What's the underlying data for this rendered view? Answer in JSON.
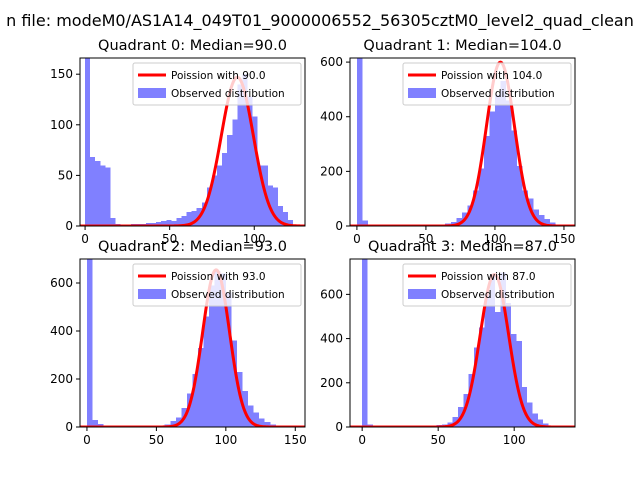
{
  "suptitle": "n file: modeM0/AS1A14_049T01_9000006552_56305cztM0_level2_quad_clean",
  "colors": {
    "hist": "#8080ff",
    "curve": "#ff0000"
  },
  "chart_data": [
    {
      "type": "bar+line",
      "title": "Quadrant 0: Median=90.0",
      "median": 90,
      "xlim": [
        -3,
        130
      ],
      "ylim": [
        0,
        166
      ],
      "xticks": [
        0,
        50,
        100
      ],
      "yticks": [
        0,
        50,
        100,
        150
      ],
      "legend": [
        "Poission with 90.0",
        "Observed distribution"
      ],
      "curve_peak": 147,
      "bin_width": 3,
      "hist": [
        {
          "x": 0,
          "v": 166
        },
        {
          "x": 3,
          "v": 68
        },
        {
          "x": 6,
          "v": 64
        },
        {
          "x": 9,
          "v": 60
        },
        {
          "x": 12,
          "v": 58
        },
        {
          "x": 15,
          "v": 8
        },
        {
          "x": 18,
          "v": 2
        },
        {
          "x": 21,
          "v": 1
        },
        {
          "x": 24,
          "v": 1
        },
        {
          "x": 27,
          "v": 2
        },
        {
          "x": 30,
          "v": 2
        },
        {
          "x": 33,
          "v": 2
        },
        {
          "x": 36,
          "v": 3
        },
        {
          "x": 39,
          "v": 3
        },
        {
          "x": 42,
          "v": 4
        },
        {
          "x": 45,
          "v": 5
        },
        {
          "x": 48,
          "v": 6
        },
        {
          "x": 51,
          "v": 5
        },
        {
          "x": 54,
          "v": 8
        },
        {
          "x": 57,
          "v": 10
        },
        {
          "x": 60,
          "v": 14
        },
        {
          "x": 63,
          "v": 15
        },
        {
          "x": 66,
          "v": 18
        },
        {
          "x": 69,
          "v": 23
        },
        {
          "x": 72,
          "v": 38
        },
        {
          "x": 75,
          "v": 50
        },
        {
          "x": 78,
          "v": 60
        },
        {
          "x": 81,
          "v": 72
        },
        {
          "x": 84,
          "v": 90
        },
        {
          "x": 87,
          "v": 105
        },
        {
          "x": 90,
          "v": 140
        },
        {
          "x": 93,
          "v": 150
        },
        {
          "x": 96,
          "v": 128
        },
        {
          "x": 99,
          "v": 108
        },
        {
          "x": 102,
          "v": 60
        },
        {
          "x": 105,
          "v": 60
        },
        {
          "x": 108,
          "v": 40
        },
        {
          "x": 111,
          "v": 38
        },
        {
          "x": 114,
          "v": 20
        },
        {
          "x": 117,
          "v": 14
        },
        {
          "x": 120,
          "v": 6
        }
      ]
    },
    {
      "type": "bar+line",
      "title": "Quadrant 1: Median=104.0",
      "median": 104,
      "xlim": [
        -5,
        158
      ],
      "ylim": [
        0,
        615
      ],
      "xticks": [
        0,
        50,
        100,
        150
      ],
      "yticks": [
        0,
        200,
        400,
        600
      ],
      "legend": [
        "Poission with 104.0",
        "Observed distribution"
      ],
      "curve_peak": 600,
      "bin_width": 4,
      "hist": [
        {
          "x": 0,
          "v": 615
        },
        {
          "x": 4,
          "v": 20
        },
        {
          "x": 8,
          "v": 3
        },
        {
          "x": 52,
          "v": 3
        },
        {
          "x": 56,
          "v": 5
        },
        {
          "x": 60,
          "v": 6
        },
        {
          "x": 64,
          "v": 10
        },
        {
          "x": 68,
          "v": 15
        },
        {
          "x": 72,
          "v": 30
        },
        {
          "x": 76,
          "v": 50
        },
        {
          "x": 80,
          "v": 75
        },
        {
          "x": 84,
          "v": 130
        },
        {
          "x": 88,
          "v": 210
        },
        {
          "x": 92,
          "v": 330
        },
        {
          "x": 96,
          "v": 420
        },
        {
          "x": 100,
          "v": 480
        },
        {
          "x": 104,
          "v": 530
        },
        {
          "x": 108,
          "v": 460
        },
        {
          "x": 112,
          "v": 350
        },
        {
          "x": 116,
          "v": 220
        },
        {
          "x": 120,
          "v": 130
        },
        {
          "x": 124,
          "v": 100
        },
        {
          "x": 128,
          "v": 60
        },
        {
          "x": 132,
          "v": 40
        },
        {
          "x": 136,
          "v": 25
        },
        {
          "x": 140,
          "v": 12
        },
        {
          "x": 144,
          "v": 5
        },
        {
          "x": 148,
          "v": 2
        }
      ]
    },
    {
      "type": "bar+line",
      "title": "Quadrant 2: Median=93.0",
      "median": 93,
      "xlim": [
        -5,
        157
      ],
      "ylim": [
        0,
        700
      ],
      "xticks": [
        0,
        50,
        100,
        150
      ],
      "yticks": [
        0,
        200,
        400,
        600
      ],
      "legend": [
        "Poission with 93.0",
        "Observed distribution"
      ],
      "curve_peak": 655,
      "bin_width": 4,
      "hist": [
        {
          "x": 0,
          "v": 700
        },
        {
          "x": 4,
          "v": 30
        },
        {
          "x": 8,
          "v": 12
        },
        {
          "x": 12,
          "v": 3
        },
        {
          "x": 48,
          "v": 4
        },
        {
          "x": 52,
          "v": 6
        },
        {
          "x": 56,
          "v": 10
        },
        {
          "x": 60,
          "v": 25
        },
        {
          "x": 64,
          "v": 40
        },
        {
          "x": 68,
          "v": 80
        },
        {
          "x": 72,
          "v": 140
        },
        {
          "x": 76,
          "v": 220
        },
        {
          "x": 80,
          "v": 330
        },
        {
          "x": 84,
          "v": 460
        },
        {
          "x": 88,
          "v": 590
        },
        {
          "x": 92,
          "v": 650
        },
        {
          "x": 96,
          "v": 640
        },
        {
          "x": 100,
          "v": 560
        },
        {
          "x": 104,
          "v": 360
        },
        {
          "x": 108,
          "v": 230
        },
        {
          "x": 112,
          "v": 150
        },
        {
          "x": 116,
          "v": 90
        },
        {
          "x": 120,
          "v": 60
        },
        {
          "x": 124,
          "v": 35
        },
        {
          "x": 128,
          "v": 20
        },
        {
          "x": 132,
          "v": 10
        },
        {
          "x": 136,
          "v": 5
        },
        {
          "x": 140,
          "v": 2
        }
      ]
    },
    {
      "type": "bar+line",
      "title": "Quadrant 3: Median=87.0",
      "median": 87,
      "xlim": [
        -8,
        140
      ],
      "ylim": [
        0,
        760
      ],
      "xticks": [
        0,
        50,
        100
      ],
      "yticks": [
        0,
        200,
        400,
        600
      ],
      "legend": [
        "Poission with 87.0",
        "Observed distribution"
      ],
      "curve_peak": 690,
      "bin_width": 3.5,
      "hist": [
        {
          "x": 0,
          "v": 760
        },
        {
          "x": 3.5,
          "v": 12
        },
        {
          "x": 7,
          "v": 3
        },
        {
          "x": 42,
          "v": 3
        },
        {
          "x": 45.5,
          "v": 5
        },
        {
          "x": 49,
          "v": 8
        },
        {
          "x": 52.5,
          "v": 12
        },
        {
          "x": 56,
          "v": 20
        },
        {
          "x": 59.5,
          "v": 45
        },
        {
          "x": 63,
          "v": 90
        },
        {
          "x": 66.5,
          "v": 150
        },
        {
          "x": 70,
          "v": 240
        },
        {
          "x": 73.5,
          "v": 360
        },
        {
          "x": 77,
          "v": 450
        },
        {
          "x": 80.5,
          "v": 600
        },
        {
          "x": 84,
          "v": 690
        },
        {
          "x": 87.5,
          "v": 520
        },
        {
          "x": 91,
          "v": 700
        },
        {
          "x": 94.5,
          "v": 560
        },
        {
          "x": 98,
          "v": 420
        },
        {
          "x": 101.5,
          "v": 390
        },
        {
          "x": 105,
          "v": 180
        },
        {
          "x": 108.5,
          "v": 110
        },
        {
          "x": 112,
          "v": 60
        },
        {
          "x": 115.5,
          "v": 35
        },
        {
          "x": 119,
          "v": 15
        },
        {
          "x": 122.5,
          "v": 6
        },
        {
          "x": 126,
          "v": 2
        }
      ]
    }
  ]
}
